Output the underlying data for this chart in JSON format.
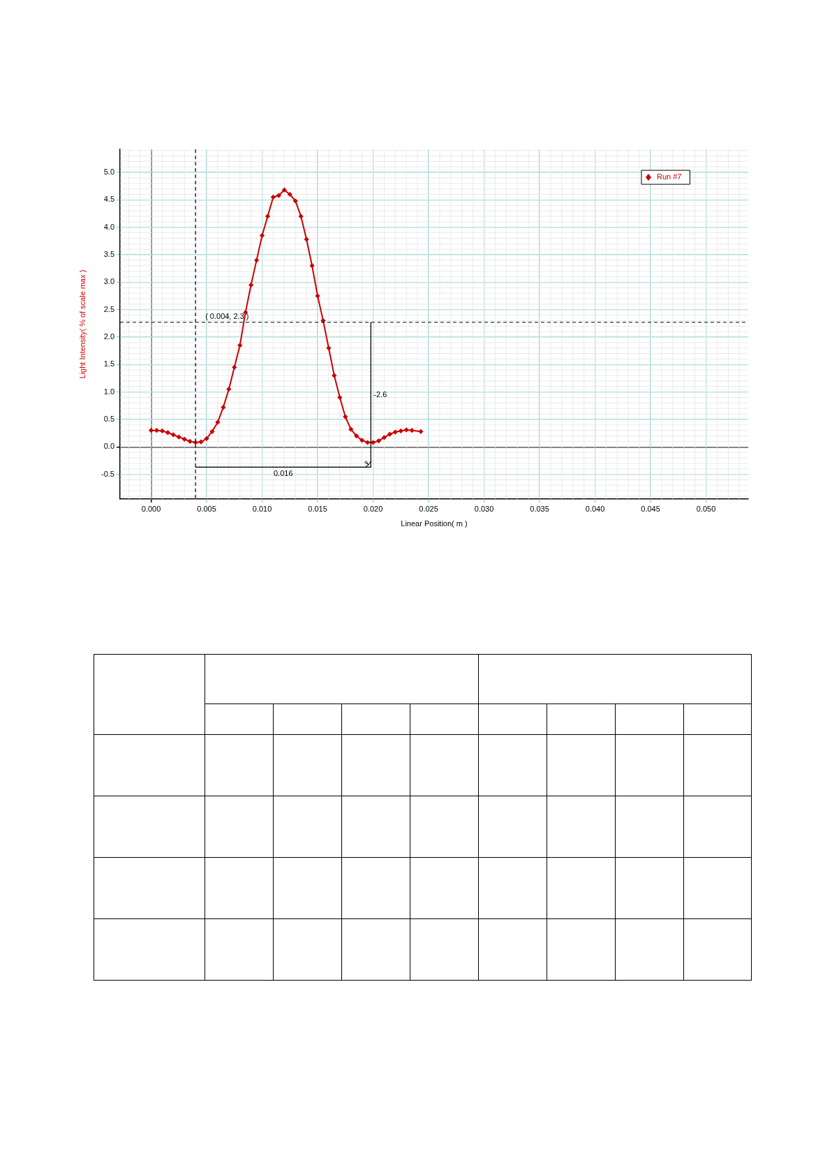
{
  "chart_data": {
    "type": "line",
    "xlabel": "Linear Position( m )",
    "ylabel": "Light Intensity( % of scale max )",
    "x": [
      0,
      0.0005,
      0.001,
      0.0015,
      0.002,
      0.0025,
      0.003,
      0.0035,
      0.004,
      0.0045,
      0.005,
      0.0055,
      0.006,
      0.0065,
      0.007,
      0.0075,
      0.008,
      0.0085,
      0.009,
      0.0095,
      0.01,
      0.0105,
      0.011,
      0.0115,
      0.012,
      0.0125,
      0.013,
      0.0135,
      0.014,
      0.0145,
      0.015,
      0.0155,
      0.016,
      0.0165,
      0.017,
      0.0175,
      0.018,
      0.0185,
      0.019,
      0.0195,
      0.02,
      0.0205,
      0.021,
      0.0215,
      0.022,
      0.0225,
      0.023,
      0.0235,
      0.0243
    ],
    "series": [
      {
        "name": "Run #7",
        "color": "#cc0000",
        "values": [
          0.3,
          0.3,
          0.29,
          0.26,
          0.22,
          0.18,
          0.14,
          0.1,
          0.08,
          0.09,
          0.15,
          0.28,
          0.45,
          0.72,
          1.05,
          1.45,
          1.85,
          2.45,
          2.95,
          3.4,
          3.85,
          4.2,
          4.55,
          4.58,
          4.68,
          4.6,
          4.48,
          4.2,
          3.78,
          3.3,
          2.75,
          2.3,
          1.8,
          1.3,
          0.9,
          0.55,
          0.32,
          0.2,
          0.12,
          0.08,
          0.08,
          0.11,
          0.17,
          0.23,
          0.27,
          0.29,
          0.31,
          0.3,
          0.28
        ]
      }
    ],
    "xlim": [
      -0.0028,
      0.0538
    ],
    "ylim": [
      -0.95,
      5.42
    ],
    "xticks": [
      {
        "value": 0,
        "label": "0.000"
      },
      {
        "value": 0.005,
        "label": "0.005"
      },
      {
        "value": 0.01,
        "label": "0.010"
      },
      {
        "value": 0.015,
        "label": "0.015"
      },
      {
        "value": 0.02,
        "label": "0.020"
      },
      {
        "value": 0.025,
        "label": "0.025"
      },
      {
        "value": 0.03,
        "label": "0.030"
      },
      {
        "value": 0.035,
        "label": "0.035"
      },
      {
        "value": 0.04,
        "label": "0.040"
      },
      {
        "value": 0.045,
        "label": "0.045"
      },
      {
        "value": 0.05,
        "label": "0.050"
      }
    ],
    "yticks": [
      -0.5,
      {
        "value": 0,
        "label": "0.0"
      },
      0.5,
      {
        "value": 1,
        "label": "1.0"
      },
      1.5,
      {
        "value": 2,
        "label": "2.0"
      },
      2.5,
      {
        "value": 3,
        "label": "3.0"
      },
      3.5,
      {
        "value": 4,
        "label": "4.0"
      },
      4.5,
      {
        "value": 5,
        "label": "5.0"
      }
    ],
    "grid": true,
    "legend": "top right",
    "marker": "diamond",
    "line_style": "solid",
    "ref_lines": [
      {
        "axis": "x",
        "value": 0.004,
        "color": "#000000",
        "line_style": "dashed"
      },
      {
        "axis": "y",
        "value": 2.27,
        "label": "( 0.004, 2.3 )",
        "color": "#000000",
        "line_style": "dashed"
      },
      {
        "axis": "x",
        "value": 0.0198,
        "color": "#000000",
        "line_style": "dotted"
      },
      {
        "axis": "y",
        "value": -0.37,
        "color": "#000000",
        "line_style": "dotted"
      }
    ],
    "annotations": [
      "-2.6",
      "0.016"
    ]
  }
}
